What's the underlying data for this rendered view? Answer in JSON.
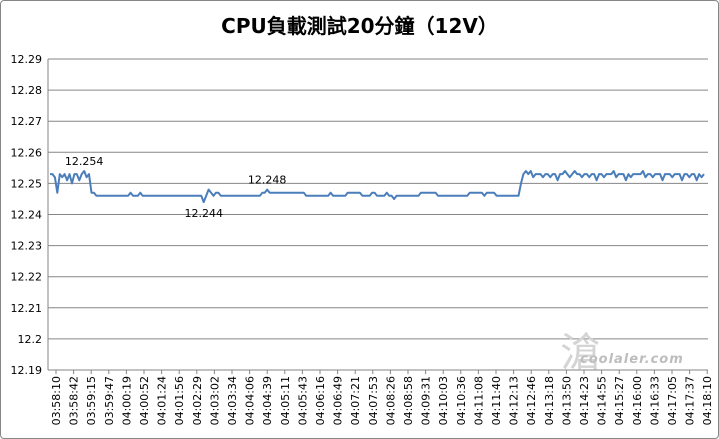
{
  "chart_data": {
    "type": "line",
    "title": "CPU負載測試20分鐘（12V）",
    "xlabel": "",
    "ylabel": "",
    "ylim": [
      12.19,
      12.29
    ],
    "grid": true,
    "y_ticks": [
      "12.29",
      "12.28",
      "12.27",
      "12.26",
      "12.25",
      "12.24",
      "12.23",
      "12.22",
      "12.21",
      "12.2",
      "12.19"
    ],
    "x_ticks": [
      "03:58:10",
      "03:58:42",
      "03:59:15",
      "03:59:47",
      "04:00:19",
      "04:00:52",
      "04:01:24",
      "04:01:56",
      "04:02:29",
      "04:03:02",
      "04:03:34",
      "04:04:06",
      "04:04:39",
      "04:05:11",
      "04:05:43",
      "04:06:16",
      "04:06:49",
      "04:07:21",
      "04:07:53",
      "04:08:26",
      "04:08:58",
      "04:09:31",
      "04:10:03",
      "04:10:36",
      "04:11:08",
      "04:11:40",
      "04:12:13",
      "04:12:46",
      "04:13:18",
      "04:13:50",
      "04:14:23",
      "04:14:55",
      "04:15:27",
      "04:16:00",
      "04:16:33",
      "04:17:05",
      "04:17:37",
      "04:18:10"
    ],
    "series": [
      {
        "color": "#4a7ebb",
        "values": [
          12.253,
          12.253,
          12.252,
          12.247,
          12.253,
          12.252,
          12.253,
          12.251,
          12.253,
          12.25,
          12.253,
          12.253,
          12.251,
          12.253,
          12.254,
          12.252,
          12.253,
          12.247,
          12.247,
          12.246,
          12.246,
          12.246,
          12.246,
          12.246,
          12.246,
          12.246,
          12.246,
          12.246,
          12.246,
          12.246,
          12.246,
          12.246,
          12.246,
          12.247,
          12.246,
          12.246,
          12.246,
          12.247,
          12.246,
          12.246,
          12.246,
          12.246,
          12.246,
          12.246,
          12.246,
          12.246,
          12.246,
          12.246,
          12.246,
          12.246,
          12.246,
          12.246,
          12.246,
          12.246,
          12.246,
          12.246,
          12.246,
          12.246,
          12.246,
          12.246,
          12.246,
          12.246,
          12.246,
          12.244,
          12.246,
          12.248,
          12.247,
          12.246,
          12.247,
          12.247,
          12.246,
          12.246,
          12.246,
          12.246,
          12.246,
          12.246,
          12.246,
          12.246,
          12.246,
          12.246,
          12.246,
          12.246,
          12.246,
          12.246,
          12.246,
          12.246,
          12.246,
          12.247,
          12.247,
          12.248,
          12.247,
          12.247,
          12.247,
          12.247,
          12.247,
          12.247,
          12.247,
          12.247,
          12.247,
          12.247,
          12.247,
          12.247,
          12.247,
          12.247,
          12.247,
          12.246,
          12.246,
          12.246,
          12.246,
          12.246,
          12.246,
          12.246,
          12.246,
          12.246,
          12.246,
          12.247,
          12.246,
          12.246,
          12.246,
          12.246,
          12.246,
          12.246,
          12.247,
          12.247,
          12.247,
          12.247,
          12.247,
          12.247,
          12.246,
          12.246,
          12.246,
          12.246,
          12.247,
          12.247,
          12.246,
          12.246,
          12.246,
          12.246,
          12.247,
          12.246,
          12.246,
          12.245,
          12.246,
          12.246,
          12.246,
          12.246,
          12.246,
          12.246,
          12.246,
          12.246,
          12.246,
          12.246,
          12.247,
          12.247,
          12.247,
          12.247,
          12.247,
          12.247,
          12.247,
          12.246,
          12.246,
          12.246,
          12.246,
          12.246,
          12.246,
          12.246,
          12.246,
          12.246,
          12.246,
          12.246,
          12.246,
          12.246,
          12.247,
          12.247,
          12.247,
          12.247,
          12.247,
          12.247,
          12.246,
          12.247,
          12.247,
          12.247,
          12.247,
          12.246,
          12.246,
          12.246,
          12.246,
          12.246,
          12.246,
          12.246,
          12.246,
          12.246,
          12.246,
          12.25,
          12.253,
          12.254,
          12.253,
          12.254,
          12.252,
          12.253,
          12.253,
          12.253,
          12.252,
          12.253,
          12.253,
          12.252,
          12.253,
          12.253,
          12.251,
          12.253,
          12.253,
          12.254,
          12.253,
          12.252,
          12.253,
          12.254,
          12.253,
          12.253,
          12.252,
          12.253,
          12.253,
          12.252,
          12.253,
          12.253,
          12.251,
          12.253,
          12.253,
          12.252,
          12.253,
          12.253,
          12.253,
          12.254,
          12.252,
          12.253,
          12.253,
          12.253,
          12.251,
          12.253,
          12.252,
          12.253,
          12.253,
          12.253,
          12.253,
          12.254,
          12.252,
          12.253,
          12.253,
          12.252,
          12.253,
          12.253,
          12.253,
          12.251,
          12.253,
          12.253,
          12.253,
          12.252,
          12.253,
          12.253,
          12.253,
          12.251,
          12.253,
          12.253,
          12.252,
          12.253,
          12.253,
          12.251,
          12.253,
          12.252,
          12.253
        ]
      }
    ],
    "annotations": [
      {
        "text": "12.254",
        "point_index": 14
      },
      {
        "text": "12.244",
        "point_index": 63
      },
      {
        "text": "12.248",
        "point_index": 89
      }
    ]
  },
  "watermark": {
    "text": "coolaler.com"
  }
}
